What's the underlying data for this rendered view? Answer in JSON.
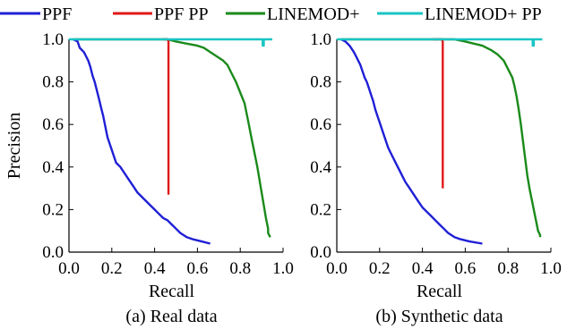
{
  "legend": [
    {
      "name": "PPF",
      "color": "#1f1fd6"
    },
    {
      "name": "PPF PP",
      "color": "#e01818"
    },
    {
      "name": "LINEMOD+",
      "color": "#1a8a1a"
    },
    {
      "name": "LINEMOD+ PP",
      "color": "#19c4c4"
    }
  ],
  "shared_ylabel": "Precision",
  "chart_data": [
    {
      "type": "line",
      "caption": "(a) Real data",
      "xlabel": "Recall",
      "ylabel": "Precision",
      "xlim": [
        0.0,
        1.0
      ],
      "ylim": [
        0.0,
        1.0
      ],
      "xticks": [
        "0.0",
        "0.2",
        "0.4",
        "0.6",
        "0.8",
        "1.0"
      ],
      "yticks": [
        "0.0",
        "0.2",
        "0.4",
        "0.6",
        "0.8",
        "1.0"
      ],
      "grid": false,
      "legend_position": "top",
      "series": [
        {
          "name": "PPF",
          "color": "#1f1fd6",
          "x": [
            0.02,
            0.04,
            0.05,
            0.07,
            0.08,
            0.09,
            0.1,
            0.11,
            0.12,
            0.13,
            0.14,
            0.15,
            0.16,
            0.17,
            0.18,
            0.19,
            0.2,
            0.21,
            0.22,
            0.24,
            0.26,
            0.28,
            0.3,
            0.32,
            0.34,
            0.36,
            0.38,
            0.4,
            0.42,
            0.44,
            0.46,
            0.48,
            0.5,
            0.52,
            0.55,
            0.58,
            0.62,
            0.66
          ],
          "y": [
            1.0,
            0.99,
            0.96,
            0.94,
            0.92,
            0.9,
            0.87,
            0.83,
            0.8,
            0.76,
            0.72,
            0.68,
            0.64,
            0.59,
            0.54,
            0.51,
            0.48,
            0.45,
            0.42,
            0.4,
            0.37,
            0.34,
            0.31,
            0.28,
            0.26,
            0.24,
            0.22,
            0.2,
            0.18,
            0.16,
            0.15,
            0.13,
            0.11,
            0.09,
            0.07,
            0.06,
            0.05,
            0.04
          ]
        },
        {
          "name": "PPF PP",
          "color": "#e01818",
          "x": [
            0.44,
            0.46,
            0.465,
            0.465
          ],
          "y": [
            1.0,
            1.0,
            0.99,
            0.27
          ]
        },
        {
          "name": "LINEMOD+",
          "color": "#1a8a1a",
          "x": [
            0.02,
            0.2,
            0.4,
            0.46,
            0.5,
            0.55,
            0.6,
            0.63,
            0.66,
            0.69,
            0.72,
            0.74,
            0.76,
            0.78,
            0.8,
            0.82,
            0.83,
            0.84,
            0.85,
            0.86,
            0.87,
            0.88,
            0.89,
            0.9,
            0.91,
            0.92,
            0.93,
            0.93,
            0.94
          ],
          "y": [
            1.0,
            1.0,
            1.0,
            1.0,
            0.99,
            0.98,
            0.97,
            0.96,
            0.94,
            0.92,
            0.9,
            0.88,
            0.84,
            0.8,
            0.75,
            0.7,
            0.65,
            0.6,
            0.55,
            0.5,
            0.45,
            0.4,
            0.34,
            0.28,
            0.22,
            0.16,
            0.11,
            0.09,
            0.07
          ]
        },
        {
          "name": "LINEMOD+ PP",
          "color": "#19c4c4",
          "x": [
            0.0,
            0.3,
            0.6,
            0.9,
            0.905,
            0.905,
            0.91,
            0.91,
            0.95
          ],
          "y": [
            1.0,
            1.0,
            1.0,
            1.0,
            1.0,
            0.97,
            0.97,
            1.0,
            1.0
          ]
        }
      ]
    },
    {
      "type": "line",
      "caption": "(b) Synthetic data",
      "xlabel": "Recall",
      "ylabel": "",
      "xlim": [
        0.0,
        1.0
      ],
      "ylim": [
        0.0,
        1.0
      ],
      "xticks": [
        "0.0",
        "0.2",
        "0.4",
        "0.6",
        "0.8",
        "1.0"
      ],
      "yticks": [
        "0.0",
        "0.2",
        "0.4",
        "0.6",
        "0.8",
        "1.0"
      ],
      "grid": false,
      "legend_position": "top",
      "series": [
        {
          "name": "PPF",
          "color": "#1f1fd6",
          "x": [
            0.02,
            0.04,
            0.06,
            0.08,
            0.09,
            0.1,
            0.11,
            0.12,
            0.13,
            0.14,
            0.15,
            0.16,
            0.17,
            0.18,
            0.19,
            0.2,
            0.21,
            0.22,
            0.23,
            0.24,
            0.26,
            0.28,
            0.3,
            0.32,
            0.34,
            0.36,
            0.38,
            0.4,
            0.42,
            0.44,
            0.46,
            0.48,
            0.5,
            0.52,
            0.55,
            0.58,
            0.62,
            0.68
          ],
          "y": [
            1.0,
            0.99,
            0.97,
            0.94,
            0.92,
            0.9,
            0.88,
            0.85,
            0.82,
            0.8,
            0.77,
            0.74,
            0.71,
            0.67,
            0.64,
            0.61,
            0.58,
            0.55,
            0.52,
            0.49,
            0.45,
            0.41,
            0.37,
            0.33,
            0.3,
            0.27,
            0.24,
            0.21,
            0.19,
            0.17,
            0.15,
            0.13,
            0.11,
            0.09,
            0.07,
            0.06,
            0.05,
            0.04
          ]
        },
        {
          "name": "PPF PP",
          "color": "#e01818",
          "x": [
            0.45,
            0.49,
            0.495,
            0.495
          ],
          "y": [
            1.0,
            1.0,
            0.99,
            0.3
          ]
        },
        {
          "name": "LINEMOD+",
          "color": "#1a8a1a",
          "x": [
            0.02,
            0.2,
            0.4,
            0.5,
            0.55,
            0.6,
            0.64,
            0.68,
            0.72,
            0.75,
            0.78,
            0.8,
            0.82,
            0.83,
            0.84,
            0.85,
            0.86,
            0.87,
            0.88,
            0.89,
            0.9,
            0.91,
            0.92,
            0.93,
            0.94,
            0.95,
            0.95
          ],
          "y": [
            1.0,
            1.0,
            1.0,
            1.0,
            1.0,
            0.99,
            0.98,
            0.97,
            0.95,
            0.93,
            0.9,
            0.86,
            0.82,
            0.78,
            0.73,
            0.67,
            0.6,
            0.52,
            0.44,
            0.36,
            0.3,
            0.25,
            0.2,
            0.15,
            0.1,
            0.08,
            0.07
          ]
        },
        {
          "name": "LINEMOD+ PP",
          "color": "#19c4c4",
          "x": [
            0.0,
            0.3,
            0.6,
            0.91,
            0.915,
            0.915,
            0.92,
            0.92,
            0.96
          ],
          "y": [
            1.0,
            1.0,
            1.0,
            1.0,
            1.0,
            0.97,
            0.97,
            1.0,
            1.0
          ]
        }
      ]
    }
  ]
}
